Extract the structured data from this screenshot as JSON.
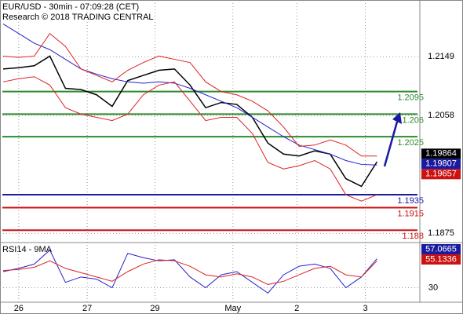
{
  "chart_data": {
    "type": "line",
    "title": "EUR/USD - 30min - 07:09:28 (CET)",
    "subtitle": "Research © 2018 TRADING CENTRAL",
    "x": [
      0,
      1,
      2,
      3,
      4,
      5,
      6,
      7,
      8,
      9,
      10,
      11,
      12,
      13,
      14,
      15,
      16,
      17,
      18,
      19,
      20,
      21,
      22,
      23,
      24
    ],
    "xlim": [
      -0.2,
      26.75
    ],
    "xticks": [
      {
        "value": 1,
        "label": "26"
      },
      {
        "value": 5.4,
        "label": "27"
      },
      {
        "value": 9.75,
        "label": "29"
      },
      {
        "value": 14.75,
        "label": "May"
      },
      {
        "value": 18.85,
        "label": "2"
      },
      {
        "value": 23.25,
        "label": "3"
      }
    ],
    "ylim": [
      1.1862,
      1.2237
    ],
    "yticks": [
      1.2149,
      1.2058,
      1.1875
    ],
    "grid": true,
    "series": [
      {
        "color": "#000000",
        "values": [
          1.213,
          1.2132,
          1.2135,
          1.215,
          1.21,
          1.2098,
          1.209,
          1.2072,
          1.2112,
          1.212,
          1.2128,
          1.213,
          1.2105,
          1.207,
          1.2078,
          1.2075,
          1.2055,
          1.2015,
          1.1998,
          1.1995,
          1.2003,
          1.1998,
          1.196,
          1.1948,
          1.1986
        ]
      },
      {
        "color": "#2222cc",
        "values": [
          1.22,
          1.2185,
          1.217,
          1.216,
          1.2145,
          1.213,
          1.2122,
          1.2115,
          1.211,
          1.2108,
          1.211,
          1.2108,
          1.21,
          1.209,
          1.208,
          1.207,
          1.2055,
          1.204,
          1.2025,
          1.2012,
          1.2005,
          1.1998,
          1.1988,
          1.1982,
          1.1981
        ]
      },
      {
        "color": "#dd2222",
        "values": [
          1.215,
          1.2148,
          1.215,
          1.2185,
          1.2165,
          1.213,
          1.212,
          1.211,
          1.2128,
          1.214,
          1.215,
          1.2145,
          1.214,
          1.211,
          1.2095,
          1.209,
          1.208,
          1.2065,
          1.204,
          1.201,
          1.2012,
          1.202,
          1.2012,
          1.1995,
          1.1995
        ]
      },
      {
        "color": "#dd2222",
        "values": [
          1.211,
          1.2115,
          1.2118,
          1.2105,
          1.207,
          1.206,
          1.2055,
          1.205,
          1.206,
          1.209,
          1.2105,
          1.211,
          1.208,
          1.205,
          1.2055,
          1.2055,
          1.203,
          1.1985,
          1.1975,
          1.198,
          1.1988,
          1.1975,
          1.1935,
          1.1925,
          1.1935
        ]
      }
    ],
    "levels": [
      {
        "value": 1.2095,
        "color": "#2e8b2e"
      },
      {
        "value": 1.206,
        "color": "#2e8b2e"
      },
      {
        "value": 1.2025,
        "color": "#2e8b2e"
      },
      {
        "value": 1.1935,
        "color": "#1a1aa0"
      },
      {
        "value": 1.1915,
        "color": "#cc1111"
      },
      {
        "value": 1.188,
        "color": "#cc1111"
      }
    ],
    "price_boxes": [
      {
        "value": 1.19864,
        "color": "#000000"
      },
      {
        "value": 1.19807,
        "color": "#1a1aa0"
      },
      {
        "value": 1.19657,
        "color": "#cc1111"
      }
    ],
    "rsi": {
      "label": "RSI14 - 9MA",
      "ylim": [
        16.5,
        71.3
      ],
      "yticks": [
        30
      ],
      "series": [
        {
          "color": "#2222cc",
          "values": [
            45,
            48,
            52,
            65,
            35,
            40,
            38,
            30,
            62,
            58,
            55,
            56,
            40,
            30,
            42,
            45,
            35,
            25,
            42,
            50,
            52,
            48,
            30,
            40,
            57
          ]
        },
        {
          "color": "#dd2222",
          "values": [
            46,
            47,
            49,
            55,
            48,
            44,
            40,
            36,
            45,
            52,
            56,
            55,
            50,
            42,
            40,
            43,
            40,
            33,
            36,
            42,
            48,
            50,
            42,
            40,
            55
          ]
        }
      ],
      "boxes": [
        {
          "value": 57.0665,
          "color": "#1a1aa0"
        },
        {
          "value": 55.1336,
          "color": "#cc1111"
        }
      ]
    }
  }
}
